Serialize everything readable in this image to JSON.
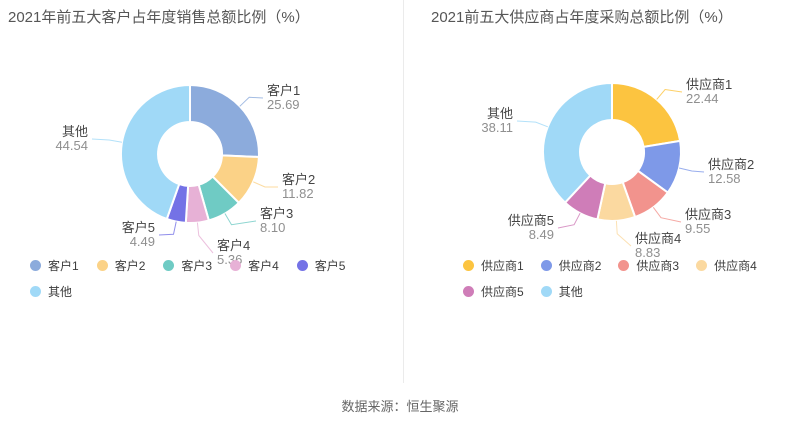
{
  "footer": {
    "text": "数据来源：恒生聚源"
  },
  "chart_data": [
    {
      "type": "pie",
      "subtype": "donut",
      "title": "2021年前五大客户占年度销售总额比例（%）",
      "unit": "%",
      "labels": [
        "客户1",
        "客户2",
        "客户3",
        "客户4",
        "客户5",
        "其他"
      ],
      "values": [
        25.69,
        11.82,
        8.1,
        5.36,
        4.49,
        44.54
      ],
      "colors": [
        "#8cabdc",
        "#fbd287",
        "#6fcbc4",
        "#e7b1d6",
        "#7472e6",
        "#a0d9f7"
      ],
      "legend_position": "bottom",
      "label_format": "name + value, two decimals"
    },
    {
      "type": "pie",
      "subtype": "donut",
      "title": "2021前五大供应商占年度采购总额比例（%）",
      "unit": "%",
      "labels": [
        "供应商1",
        "供应商2",
        "供应商3",
        "供应商4",
        "供应商5",
        "其他"
      ],
      "values": [
        22.44,
        12.58,
        9.55,
        8.83,
        8.49,
        38.11
      ],
      "colors": [
        "#fcc440",
        "#7e99e8",
        "#f2938d",
        "#fbd9a0",
        "#cf7db8",
        "#a0d9f7"
      ],
      "legend_position": "bottom",
      "label_format": "name + value, two decimals"
    }
  ]
}
